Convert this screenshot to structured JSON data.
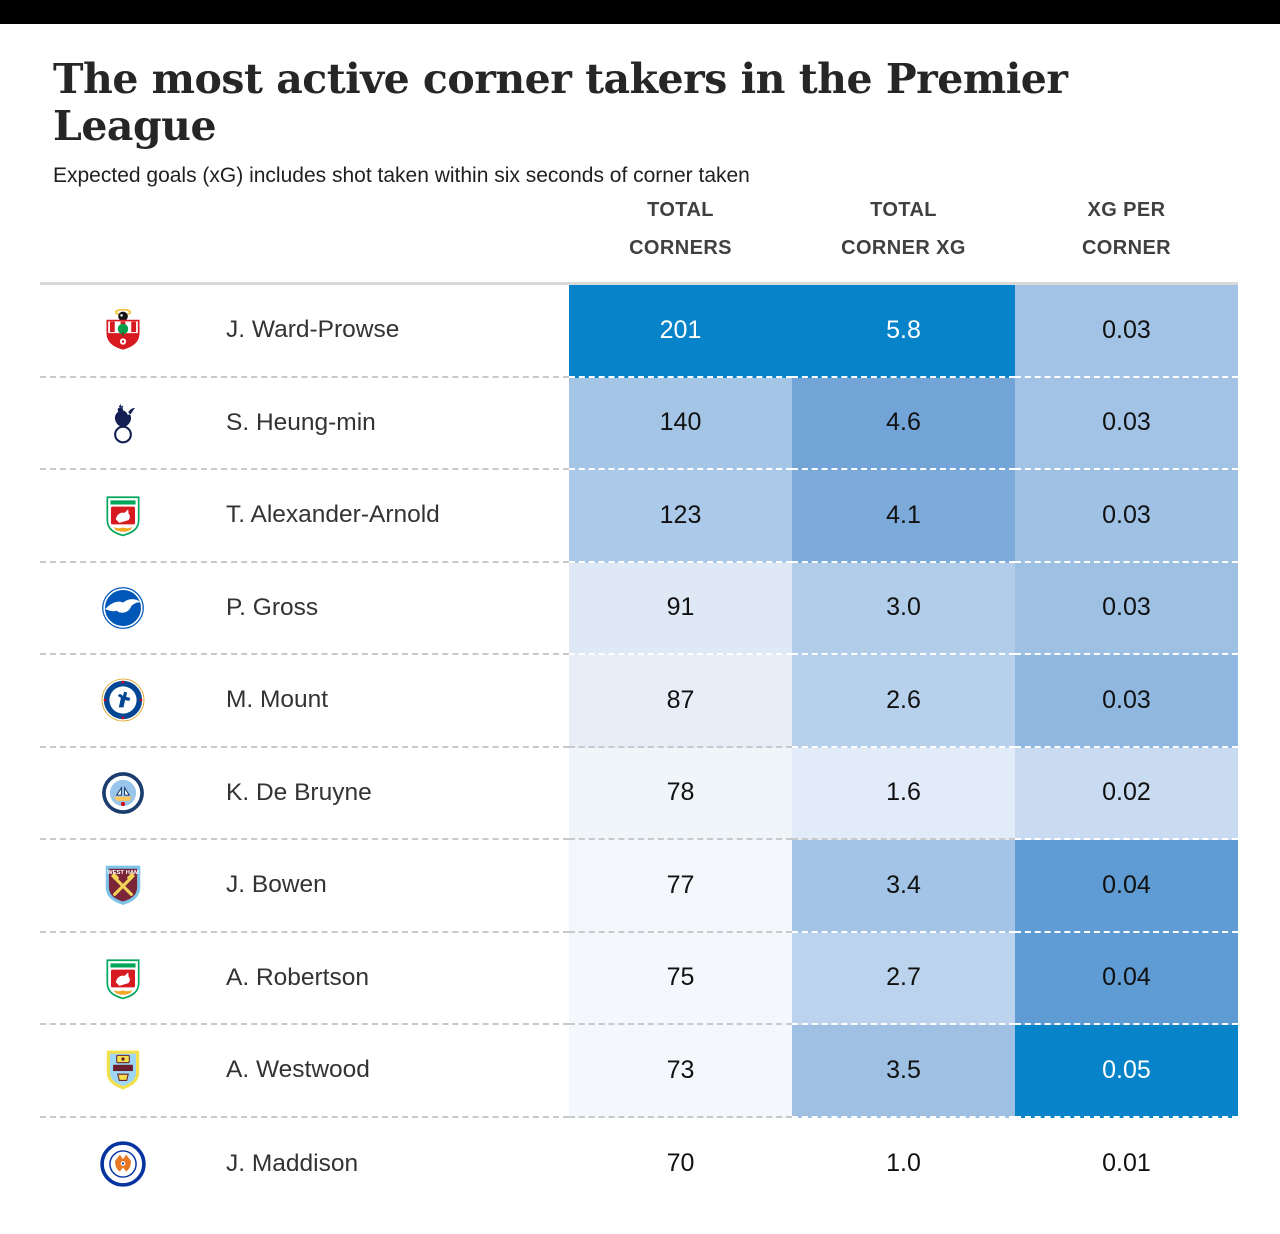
{
  "top_bar": {
    "color": "#000000"
  },
  "header": {
    "title": "The most active corner takers in the Premier League",
    "subtitle": "Expected goals (xG) includes shot taken within six seconds of corner taken"
  },
  "table": {
    "column_headers": [
      "TOTAL\nCORNERS",
      "TOTAL\nCORNER XG",
      "XG PER\nCORNER"
    ],
    "accent_dark_blue": "#0683c9",
    "separator_gray": "#c9c9c9",
    "rows": [
      {
        "player": "J. Ward-Prowse",
        "team": "Southampton",
        "badge": "southampton",
        "cells": [
          {
            "text": "201",
            "bg": "#0683c9",
            "fg": "#ffffff"
          },
          {
            "text": "5.8",
            "bg": "#0683c9",
            "fg": "#ffffff"
          },
          {
            "text": "0.03",
            "bg": "#a2c3e5",
            "fg": "#111111"
          }
        ]
      },
      {
        "player": "S. Heung-min",
        "team": "Tottenham Hotspur",
        "badge": "tottenham",
        "cells": [
          {
            "text": "140",
            "bg": "#a5c5e6",
            "fg": "#111111"
          },
          {
            "text": "4.6",
            "bg": "#72a4d8",
            "fg": "#111111"
          },
          {
            "text": "0.03",
            "bg": "#a2c3e5",
            "fg": "#111111"
          }
        ]
      },
      {
        "player": "T. Alexander-Arnold",
        "team": "Liverpool",
        "badge": "liverpool",
        "cells": [
          {
            "text": "123",
            "bg": "#abc9e8",
            "fg": "#111111"
          },
          {
            "text": "4.1",
            "bg": "#7caad9",
            "fg": "#111111"
          },
          {
            "text": "0.03",
            "bg": "#9fc1e4",
            "fg": "#111111"
          }
        ]
      },
      {
        "player": "P. Gross",
        "team": "Brighton & Hove Albion",
        "badge": "brighton",
        "cells": [
          {
            "text": "91",
            "bg": "#dfe9f5",
            "fg": "#111111"
          },
          {
            "text": "3.0",
            "bg": "#b2cdea",
            "fg": "#111111"
          },
          {
            "text": "0.03",
            "bg": "#9dc0e3",
            "fg": "#111111"
          }
        ]
      },
      {
        "player": "M. Mount",
        "team": "Chelsea",
        "badge": "chelsea",
        "cells": [
          {
            "text": "87",
            "bg": "#e7eef8",
            "fg": "#111111"
          },
          {
            "text": "2.6",
            "bg": "#b7d1ec",
            "fg": "#111111"
          },
          {
            "text": "0.03",
            "bg": "#8fb7e0",
            "fg": "#111111"
          }
        ]
      },
      {
        "player": "K. De Bruyne",
        "team": "Manchester City",
        "badge": "mancity",
        "cells": [
          {
            "text": "78",
            "bg": "#f0f5fa",
            "fg": "#111111"
          },
          {
            "text": "1.6",
            "bg": "#e2ecf8",
            "fg": "#111111"
          },
          {
            "text": "0.02",
            "bg": "#c8dbf1",
            "fg": "#111111"
          }
        ]
      },
      {
        "player": "J. Bowen",
        "team": "West Ham United",
        "badge": "westham",
        "cells": [
          {
            "text": "77",
            "bg": "#f3f7fb",
            "fg": "#111111"
          },
          {
            "text": "3.4",
            "bg": "#a3c4e6",
            "fg": "#111111"
          },
          {
            "text": "0.04",
            "bg": "#5f9cd4",
            "fg": "#111111"
          }
        ]
      },
      {
        "player": "A. Robertson",
        "team": "Liverpool",
        "badge": "liverpool",
        "cells": [
          {
            "text": "75",
            "bg": "#f4f7fb",
            "fg": "#111111"
          },
          {
            "text": "2.7",
            "bg": "#bcd3ed",
            "fg": "#111111"
          },
          {
            "text": "0.04",
            "bg": "#5f9cd4",
            "fg": "#111111"
          }
        ]
      },
      {
        "player": "A. Westwood",
        "team": "Burnley",
        "badge": "burnley",
        "cells": [
          {
            "text": "73",
            "bg": "#f4f7fb",
            "fg": "#111111"
          },
          {
            "text": "3.5",
            "bg": "#9dc0e3",
            "fg": "#111111"
          },
          {
            "text": "0.05",
            "bg": "#0683c9",
            "fg": "#ffffff"
          }
        ]
      },
      {
        "player": "J. Maddison",
        "team": "Leicester City",
        "badge": "leicester",
        "cells": [
          {
            "text": "70",
            "bg": null,
            "fg": "#111111"
          },
          {
            "text": "1.0",
            "bg": null,
            "fg": "#111111"
          },
          {
            "text": "0.01",
            "bg": null,
            "fg": "#111111"
          }
        ]
      }
    ]
  },
  "chart_data": {
    "type": "table",
    "subtype": "heatmap-table",
    "title": "The most active corner takers in the Premier League",
    "subtitle": "Expected goals (xG) includes shot taken within six seconds of corner taken",
    "columns": [
      "Total corners",
      "Total corner xG",
      "xG per corner"
    ],
    "rows": [
      {
        "player": "J. Ward-Prowse",
        "team": "Southampton",
        "total_corners": 201,
        "total_corner_xg": 5.8,
        "xg_per_corner": 0.03
      },
      {
        "player": "S. Heung-min",
        "team": "Tottenham Hotspur",
        "total_corners": 140,
        "total_corner_xg": 4.6,
        "xg_per_corner": 0.03
      },
      {
        "player": "T. Alexander-Arnold",
        "team": "Liverpool",
        "total_corners": 123,
        "total_corner_xg": 4.1,
        "xg_per_corner": 0.03
      },
      {
        "player": "P. Gross",
        "team": "Brighton & Hove Albion",
        "total_corners": 91,
        "total_corner_xg": 3.0,
        "xg_per_corner": 0.03
      },
      {
        "player": "M. Mount",
        "team": "Chelsea",
        "total_corners": 87,
        "total_corner_xg": 2.6,
        "xg_per_corner": 0.03
      },
      {
        "player": "K. De Bruyne",
        "team": "Manchester City",
        "total_corners": 78,
        "total_corner_xg": 1.6,
        "xg_per_corner": 0.02
      },
      {
        "player": "J. Bowen",
        "team": "West Ham United",
        "total_corners": 77,
        "total_corner_xg": 3.4,
        "xg_per_corner": 0.04
      },
      {
        "player": "A. Robertson",
        "team": "Liverpool",
        "total_corners": 75,
        "total_corner_xg": 2.7,
        "xg_per_corner": 0.04
      },
      {
        "player": "A. Westwood",
        "team": "Burnley",
        "total_corners": 73,
        "total_corner_xg": 3.5,
        "xg_per_corner": 0.05
      },
      {
        "player": "J. Maddison",
        "team": "Leicester City",
        "total_corners": 70,
        "total_corner_xg": 1.0,
        "xg_per_corner": 0.01
      }
    ],
    "legend_position": "none",
    "grid": "dashed-row-separators",
    "color_encoding": "cell shading scales with value (darker blue = higher)"
  }
}
